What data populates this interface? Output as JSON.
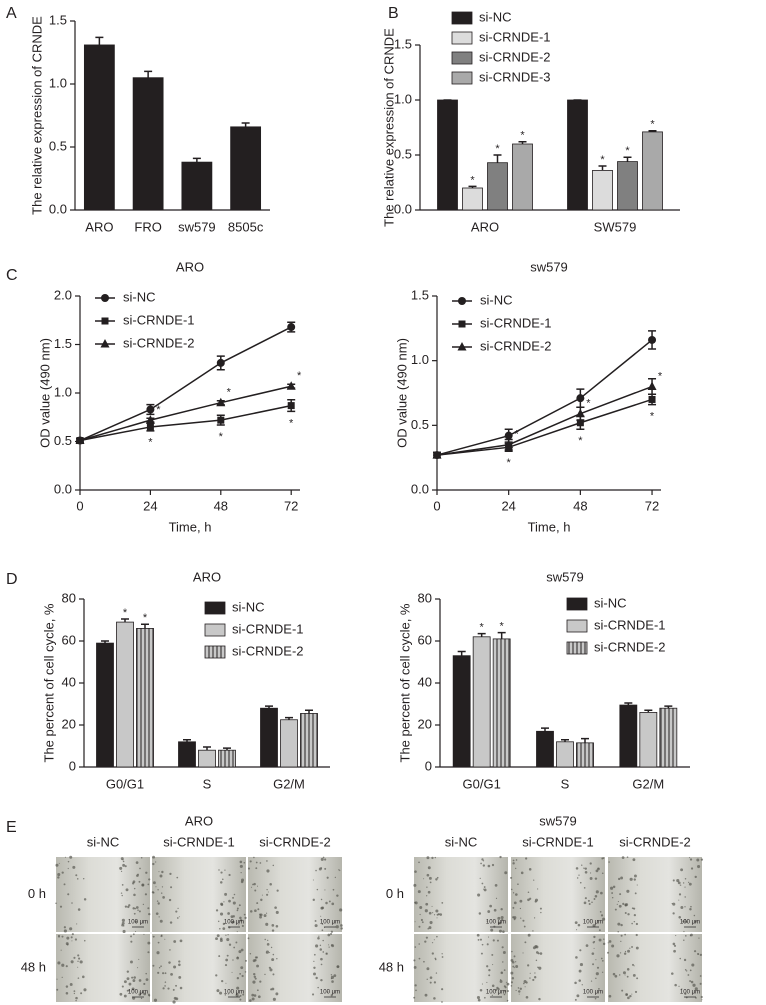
{
  "chart_data": [
    {
      "type": "bar",
      "panel": "A",
      "ylabel": "The relative expression of CRNDE",
      "categories": [
        "ARO",
        "FRO",
        "sw579",
        "8505c"
      ],
      "series": [
        {
          "color": "#231f20",
          "values": [
            1.31,
            1.05,
            0.38,
            0.66
          ],
          "errors": [
            0.06,
            0.05,
            0.03,
            0.03
          ]
        }
      ],
      "ylim": [
        0,
        1.5
      ],
      "yticks": [
        {
          "value": 0,
          "label": "0.0"
        },
        0.5,
        {
          "value": 1,
          "label": "1.0"
        },
        1.5
      ]
    },
    {
      "type": "bar",
      "panel": "B",
      "ylabel": "The relative expression of CRNDE",
      "legend": "top-left",
      "categories": [
        "ARO",
        "SW579"
      ],
      "series": [
        {
          "name": "si-NC",
          "color": "#231f20",
          "values": [
            1,
            1
          ],
          "errors": [
            0,
            0
          ]
        },
        {
          "name": "si-CRNDE-1",
          "color": "#dcdcdc",
          "values": [
            0.2,
            0.36
          ],
          "errors": [
            0.015,
            0.04
          ],
          "annotations": [
            "*",
            "*"
          ]
        },
        {
          "name": "si-CRNDE-2",
          "color": "#808080",
          "values": [
            0.43,
            0.44
          ],
          "errors": [
            0.07,
            0.04
          ],
          "annotations": [
            "*",
            "*"
          ]
        },
        {
          "name": "si-CRNDE-3",
          "color": "#a9a9a9",
          "values": [
            0.6,
            0.71
          ],
          "errors": [
            0.02,
            0.01
          ],
          "annotations": [
            "*",
            "*"
          ]
        }
      ],
      "ylim": [
        0,
        1.5
      ],
      "yticks": [
        {
          "value": 0,
          "label": "0.0"
        },
        0.5,
        {
          "value": 1,
          "label": "1.0"
        },
        1.5
      ]
    },
    {
      "type": "line",
      "panel": "C",
      "title": "ARO",
      "xlabel": "Time, h",
      "ylabel": "OD value (490 nm)",
      "legend": "top-left",
      "x": [
        0,
        24,
        48,
        72
      ],
      "xlim": [
        0,
        75
      ],
      "xticks": [
        0,
        24,
        48,
        72
      ],
      "series": [
        {
          "name": "si-NC",
          "color": "#231f20",
          "marker": "circle",
          "values": [
            0.51,
            0.83,
            1.31,
            1.68
          ],
          "errors": [
            0.02,
            0.05,
            0.07,
            0.05
          ]
        },
        {
          "name": "si-CRNDE-1",
          "color": "#231f20",
          "marker": "square",
          "values": [
            0.51,
            0.65,
            0.72,
            0.87
          ],
          "errors": [
            0.02,
            0.04,
            0.05,
            0.06
          ],
          "annotations": [
            null,
            "*",
            "*",
            "*"
          ]
        },
        {
          "name": "si-CRNDE-2",
          "color": "#231f20",
          "marker": "triangle",
          "values": [
            0.51,
            0.72,
            0.9,
            1.07
          ],
          "errors": [
            0.02,
            0.02,
            0.02,
            0.02
          ],
          "annotations": [
            null,
            "*",
            "*",
            "*"
          ]
        }
      ],
      "ylim": [
        0,
        2
      ],
      "yticks": [
        {
          "value": 0,
          "label": "0.0"
        },
        0.5,
        {
          "value": 1,
          "label": "1.0"
        },
        1.5,
        {
          "value": 2,
          "label": "2.0"
        }
      ]
    },
    {
      "type": "line",
      "title": "sw579",
      "xlabel": "Time, h",
      "ylabel": "OD value (490 nm)",
      "legend": "top-left",
      "x": [
        0,
        24,
        48,
        72
      ],
      "xlim": [
        0,
        75
      ],
      "xticks": [
        0,
        24,
        48,
        72
      ],
      "series": [
        {
          "name": "si-NC",
          "color": "#231f20",
          "marker": "circle",
          "values": [
            0.27,
            0.42,
            0.71,
            1.16
          ],
          "errors": [
            0.02,
            0.05,
            0.07,
            0.07
          ]
        },
        {
          "name": "si-CRNDE-1",
          "color": "#231f20",
          "marker": "square",
          "values": [
            0.27,
            0.33,
            0.52,
            0.7
          ],
          "errors": [
            0.02,
            0.03,
            0.05,
            0.04
          ],
          "annotations": [
            null,
            "*",
            "*",
            "*"
          ]
        },
        {
          "name": "si-CRNDE-2",
          "color": "#231f20",
          "marker": "triangle",
          "values": [
            0.27,
            0.35,
            0.59,
            0.8
          ],
          "errors": [
            0.02,
            0.04,
            0.05,
            0.06
          ],
          "annotations": [
            null,
            "*",
            "*",
            "*"
          ]
        }
      ],
      "ylim": [
        0,
        1.5
      ],
      "yticks": [
        {
          "value": 0,
          "label": "0.0"
        },
        0.5,
        {
          "value": 1,
          "label": "1.0"
        },
        1.5
      ]
    },
    {
      "type": "bar",
      "panel": "D",
      "title": "ARO",
      "ylabel": "The percent of cell cycle, %",
      "legend": "top-right",
      "categories": [
        "G0/G1",
        "S",
        "G2/M"
      ],
      "series": [
        {
          "name": "si-NC",
          "color": "#231f20",
          "values": [
            59,
            12,
            28
          ],
          "errors": [
            1,
            1,
            1
          ]
        },
        {
          "name": "si-CRNDE-1",
          "color": "#c8c8c8",
          "values": [
            69,
            8,
            22.5
          ],
          "errors": [
            1.5,
            1.5,
            1
          ],
          "annotations": [
            "*",
            null,
            null
          ]
        },
        {
          "name": "si-CRNDE-2",
          "color": "#c8c8c8",
          "hatch": "vertical",
          "values": [
            66,
            8,
            25.5
          ],
          "errors": [
            2,
            1,
            1.5
          ],
          "annotations": [
            "*",
            null,
            null
          ]
        }
      ],
      "ylim": [
        0,
        80
      ],
      "yticks": [
        0,
        20,
        40,
        60,
        80
      ]
    },
    {
      "type": "bar",
      "title": "sw579",
      "ylabel": "The percent of cell cycle, %",
      "legend": "top-right",
      "categories": [
        "G0/G1",
        "S",
        "G2/M"
      ],
      "series": [
        {
          "name": "si-NC",
          "color": "#231f20",
          "values": [
            53,
            17,
            29.5
          ],
          "errors": [
            2,
            1.5,
            1
          ]
        },
        {
          "name": "si-CRNDE-1",
          "color": "#c8c8c8",
          "values": [
            62,
            12,
            26
          ],
          "errors": [
            1.5,
            1,
            1
          ],
          "annotations": [
            "*",
            null,
            null
          ]
        },
        {
          "name": "si-CRNDE-2",
          "color": "#c8c8c8",
          "hatch": "vertical",
          "values": [
            61,
            11.5,
            28
          ],
          "errors": [
            3,
            2,
            1
          ],
          "annotations": [
            "*",
            null,
            null
          ]
        }
      ],
      "ylim": [
        0,
        80
      ],
      "yticks": [
        0,
        20,
        40,
        60,
        80
      ]
    }
  ],
  "panel_e": {
    "label": "E",
    "scale_bar": "100 μm",
    "groups": [
      {
        "title": "ARO",
        "columns": [
          "si-NC",
          "si-CRNDE-1",
          "si-CRNDE-2"
        ],
        "rows": [
          "0 h",
          "48 h"
        ]
      },
      {
        "title": "sw579",
        "columns": [
          "si-NC",
          "si-CRNDE-1",
          "si-CRNDE-2"
        ],
        "rows": [
          "0 h",
          "48 h"
        ]
      }
    ]
  }
}
